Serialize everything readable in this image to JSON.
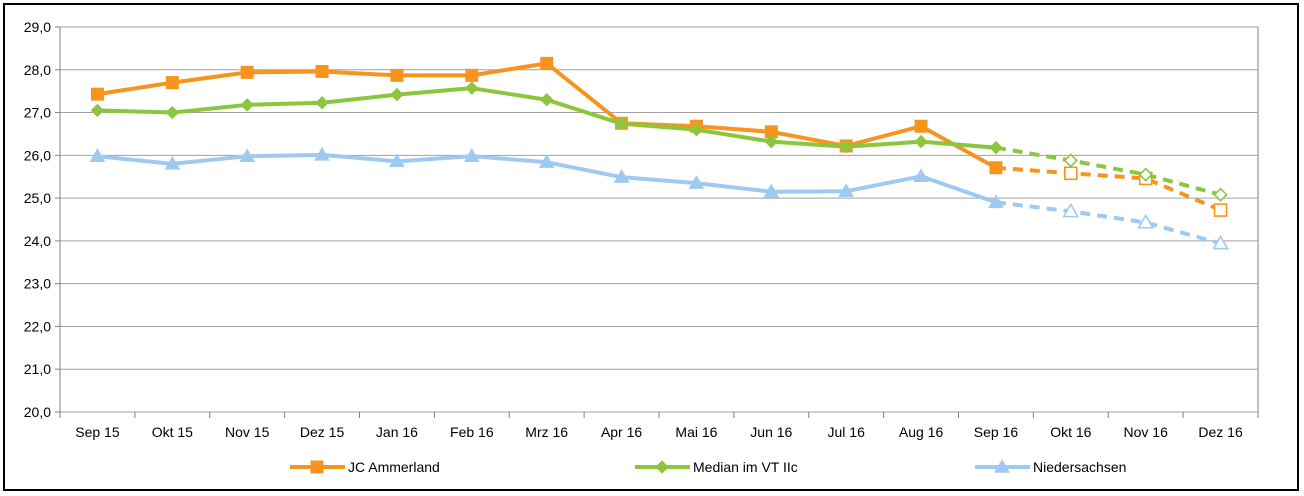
{
  "chart_data": {
    "type": "line",
    "categories": [
      "Sep 15",
      "Okt 15",
      "Nov 15",
      "Dez 15",
      "Jan 16",
      "Feb 16",
      "Mrz 16",
      "Apr 16",
      "Mai 16",
      "Jun 16",
      "Jul 16",
      "Aug 16",
      "Sep 16",
      "Okt 16",
      "Nov 16",
      "Dez 16"
    ],
    "ylim": [
      20.0,
      29.0
    ],
    "yticks": [
      "20,0",
      "21,0",
      "22,0",
      "23,0",
      "24,0",
      "25,0",
      "26,0",
      "27,0",
      "28,0",
      "29,0"
    ],
    "grid": true,
    "legend_position": "bottom",
    "series": [
      {
        "name": "JC Ammerland",
        "color": "#F7941D",
        "marker": "square",
        "values": [
          27.43,
          27.7,
          27.94,
          27.96,
          27.87,
          27.87,
          28.15,
          26.75,
          26.68,
          26.55,
          26.22,
          26.68,
          25.71,
          null,
          null,
          null
        ],
        "forecast": [
          null,
          null,
          null,
          null,
          null,
          null,
          null,
          null,
          null,
          null,
          null,
          null,
          25.71,
          25.58,
          25.46,
          24.72
        ]
      },
      {
        "name": "Median im VT IIc",
        "color": "#8CC63F",
        "marker": "diamond",
        "values": [
          27.05,
          27.0,
          27.18,
          27.23,
          27.42,
          27.57,
          27.3,
          26.74,
          26.6,
          26.32,
          26.2,
          26.32,
          26.18,
          null,
          null,
          null
        ],
        "forecast": [
          null,
          null,
          null,
          null,
          null,
          null,
          null,
          null,
          null,
          null,
          null,
          null,
          26.18,
          25.88,
          25.55,
          25.08
        ]
      },
      {
        "name": "Niedersachsen",
        "color": "#9ECAF1",
        "marker": "triangle",
        "values": [
          25.98,
          25.8,
          25.98,
          26.01,
          25.86,
          25.98,
          25.84,
          25.49,
          25.35,
          25.15,
          25.16,
          25.51,
          24.9,
          null,
          null,
          null
        ],
        "forecast": [
          null,
          null,
          null,
          null,
          null,
          null,
          null,
          null,
          null,
          null,
          null,
          null,
          24.9,
          24.69,
          24.43,
          23.94
        ]
      }
    ]
  }
}
